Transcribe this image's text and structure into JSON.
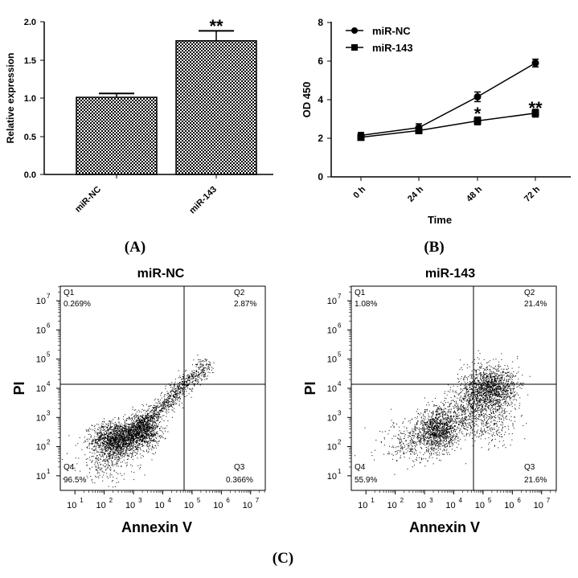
{
  "colors": {
    "ink": "#000000",
    "background": "#ffffff"
  },
  "chart_data": [
    {
      "panel": "A",
      "type": "bar",
      "panel_label": "(A)",
      "title": "",
      "xlabel": "",
      "ylabel": "Relative expression",
      "ylim": [
        0,
        2.0
      ],
      "yticks": [
        "0.0",
        "0.5",
        "1.0",
        "1.5",
        "2.0"
      ],
      "categories": [
        "miR-NC",
        "miR-143"
      ],
      "values": [
        1.01,
        1.75
      ],
      "errors": [
        0.05,
        0.13
      ],
      "annotations": [
        "",
        "**"
      ],
      "bar_fill": "checkerboard pattern"
    },
    {
      "panel": "B",
      "type": "line",
      "panel_label": "(B)",
      "xlabel": "Time",
      "ylabel": "OD 450",
      "ylim": [
        0,
        8
      ],
      "yticks": [
        "0",
        "2",
        "4",
        "6",
        "8"
      ],
      "categories": [
        "0 h",
        "24 h",
        "48 h",
        "72 h"
      ],
      "legend_position": "top-left",
      "series": [
        {
          "name": "miR-NC",
          "marker": "circle",
          "values": [
            2.15,
            2.55,
            4.15,
            5.9
          ],
          "errors": [
            0.15,
            0.2,
            0.25,
            0.2
          ]
        },
        {
          "name": "miR-143",
          "marker": "square",
          "values": [
            2.05,
            2.4,
            2.9,
            3.3
          ],
          "errors": [
            0.15,
            0.15,
            0.2,
            0.2
          ]
        }
      ],
      "annotations": [
        {
          "category": "48 h",
          "text": "*"
        },
        {
          "category": "72 h",
          "text": "**"
        }
      ]
    },
    {
      "panel": "C",
      "type": "scatter",
      "panel_label": "(C)",
      "plots": [
        {
          "title": "miR-NC",
          "xlabel": "Annexin V",
          "ylabel": "PI",
          "xticks": [
            "10",
            "10",
            "10",
            "10",
            "10",
            "10",
            "10"
          ],
          "tick_exponents": [
            "1",
            "2",
            "3",
            "4",
            "5",
            "6",
            "7"
          ],
          "yticks": [
            "10",
            "10",
            "10",
            "10",
            "10",
            "10",
            "10"
          ],
          "quadrants": [
            {
              "name": "Q1",
              "value": "0.269%"
            },
            {
              "name": "Q2",
              "value": "2.87%"
            },
            {
              "name": "Q3",
              "value": "0.366%"
            },
            {
              "name": "Q4",
              "value": "96.5%"
            }
          ],
          "gate_log10": {
            "x": 4.7,
            "y": 4.0
          },
          "population_log10": [
            {
              "cx": 2.4,
              "cy": 2.25,
              "sx": 0.4,
              "sy": 0.3,
              "n": 1500
            },
            {
              "cx": 3.3,
              "cy": 2.55,
              "sx": 0.3,
              "sy": 0.3,
              "n": 900
            },
            {
              "cx": 2.1,
              "cy": 1.5,
              "sx": 0.5,
              "sy": 0.35,
              "n": 260
            },
            {
              "diagonal": true,
              "x0": 2.8,
              "x1": 5.5,
              "y0": 2.3,
              "y1": 4.85,
              "spread": 0.16,
              "n": 1100
            }
          ]
        },
        {
          "title": "miR-143",
          "xlabel": "Annexin V",
          "ylabel": "PI",
          "xticks": [
            "10",
            "10",
            "10",
            "10",
            "10",
            "10",
            "10"
          ],
          "tick_exponents": [
            "1",
            "2",
            "3",
            "4",
            "5",
            "6",
            "7"
          ],
          "yticks": [
            "10",
            "10",
            "10",
            "10",
            "10",
            "10",
            "10"
          ],
          "quadrants": [
            {
              "name": "Q1",
              "value": "1.08%"
            },
            {
              "name": "Q2",
              "value": "21.4%"
            },
            {
              "name": "Q3",
              "value": "21.6%"
            },
            {
              "name": "Q4",
              "value": "55.9%"
            }
          ],
          "gate_log10": {
            "x": 4.7,
            "y": 4.0
          },
          "population_log10": [
            {
              "cx": 3.45,
              "cy": 2.6,
              "sx": 0.35,
              "sy": 0.35,
              "n": 1100
            },
            {
              "cx": 5.2,
              "cy": 4.0,
              "sx": 0.45,
              "sy": 0.4,
              "n": 1500
            },
            {
              "cx": 4.4,
              "cy": 3.2,
              "sx": 0.4,
              "sy": 0.4,
              "n": 450
            },
            {
              "cx": 2.6,
              "cy": 2.2,
              "sx": 0.55,
              "sy": 0.4,
              "n": 350
            },
            {
              "cx": 5.2,
              "cy": 2.8,
              "sx": 0.45,
              "sy": 0.35,
              "n": 250
            }
          ]
        }
      ]
    }
  ]
}
